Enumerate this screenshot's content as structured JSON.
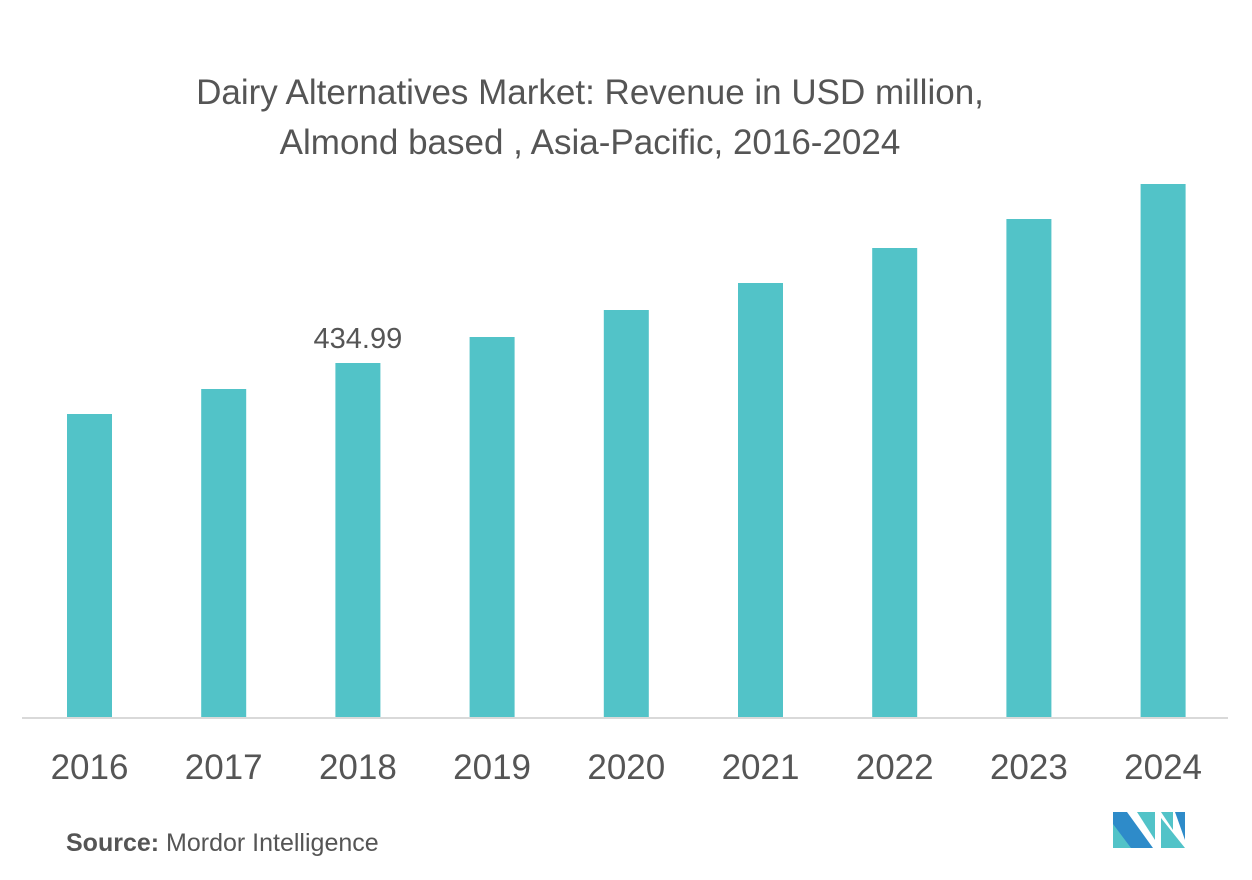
{
  "chart_data": {
    "type": "bar",
    "title": "Dairy Alternatives Market: Revenue in USD million,",
    "subtitle": "Almond based , Asia-Pacific, 2016-2024",
    "xlabel": "",
    "ylabel": "",
    "categories": [
      "2016",
      "2017",
      "2018",
      "2019",
      "2020",
      "2021",
      "2022",
      "2023",
      "2024"
    ],
    "values": [
      372.5,
      403.1,
      434.99,
      466.8,
      499.9,
      533.0,
      575.9,
      611.4,
      654.3
    ],
    "data_labels": [
      {
        "category": "2018",
        "text": "434.99"
      }
    ],
    "ylim": [
      0,
      654.3
    ],
    "grid": false,
    "legend": "none",
    "bar_color": "#52C3C8",
    "axis_color": "#D9D9D9",
    "text_color": "#555555"
  },
  "footer": {
    "source_label": "Source:",
    "source_value": "Mordor Intelligence"
  },
  "logo": {
    "text": "MI",
    "colors": [
      "#2E8BC9",
      "#52C3C8"
    ]
  }
}
